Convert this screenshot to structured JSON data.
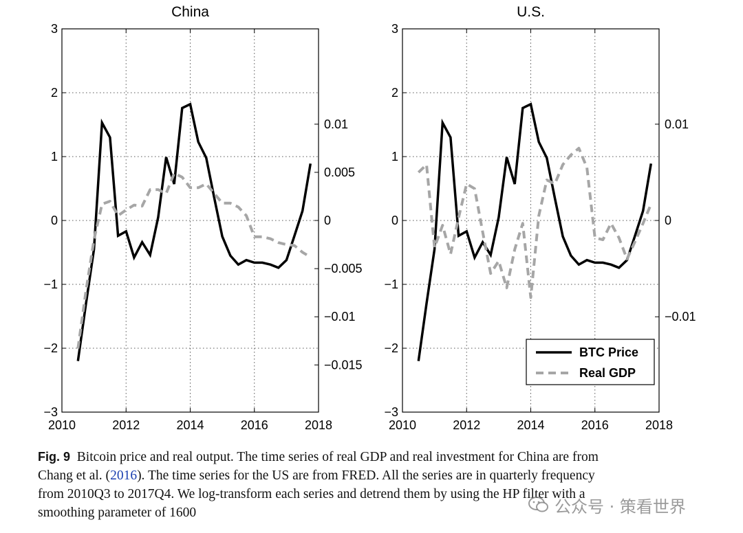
{
  "chart_data": [
    {
      "type": "line",
      "title": "China",
      "xlabel": "",
      "ylabel": "",
      "y2label": "",
      "xlim": [
        2010,
        2018
      ],
      "ylim": [
        -3,
        3
      ],
      "y2lim": [
        -0.0199,
        0.0199
      ],
      "x_ticks": [
        "2010",
        "2012",
        "2014",
        "2016",
        "2018"
      ],
      "y_ticks": [
        "3",
        "2",
        "1",
        "0",
        "−1",
        "−2",
        "−3"
      ],
      "y2_ticks": [
        "0.01",
        "0.005",
        "0",
        "−0.005",
        "−0.01",
        "−0.015"
      ],
      "grid": true,
      "x": [
        2010.5,
        2010.75,
        2011.0,
        2011.25,
        2011.5,
        2011.75,
        2012.0,
        2012.25,
        2012.5,
        2012.75,
        2013.0,
        2013.25,
        2013.5,
        2013.75,
        2014.0,
        2014.25,
        2014.5,
        2014.75,
        2015.0,
        2015.25,
        2015.5,
        2015.75,
        2016.0,
        2016.25,
        2016.5,
        2016.75,
        2017.0,
        2017.25,
        2017.5,
        2017.75
      ],
      "series": [
        {
          "name": "BTC Price",
          "axis": "left",
          "style": "solid",
          "values": [
            -2.2,
            -1.3,
            -0.45,
            1.53,
            1.3,
            -0.24,
            -0.17,
            -0.58,
            -0.34,
            -0.54,
            0.05,
            0.99,
            0.57,
            1.76,
            1.82,
            1.23,
            0.98,
            0.35,
            -0.25,
            -0.55,
            -0.69,
            -0.62,
            -0.66,
            -0.66,
            -0.69,
            -0.74,
            -0.62,
            -0.24,
            0.15,
            0.89
          ]
        },
        {
          "name": "Real GDP",
          "axis": "right",
          "style": "dashed",
          "values": [
            -0.0133,
            -0.0073,
            -0.002,
            0.0017,
            0.002,
            0.0005,
            0.0011,
            0.0016,
            0.0015,
            0.0032,
            0.0032,
            0.0028,
            0.0049,
            0.0045,
            0.0034,
            0.0034,
            0.0038,
            0.0028,
            0.0018,
            0.0018,
            0.0014,
            0.0005,
            -0.0017,
            -0.0017,
            -0.0019,
            -0.0023,
            -0.0025,
            -0.0026,
            -0.0033,
            -0.0038
          ]
        }
      ]
    },
    {
      "type": "line",
      "title": "U.S.",
      "xlabel": "",
      "ylabel": "",
      "y2label": "",
      "xlim": [
        2010,
        2018
      ],
      "ylim": [
        -3,
        3
      ],
      "y2lim": [
        -0.0199,
        0.0199
      ],
      "x_ticks": [
        "2010",
        "2012",
        "2014",
        "2016",
        "2018"
      ],
      "y_ticks": [
        "3",
        "2",
        "1",
        "0",
        "−1",
        "−2",
        "−3"
      ],
      "y2_ticks": [
        "0.01",
        "0",
        "−0.01"
      ],
      "grid": true,
      "legend": {
        "placement": "lower-right",
        "entries": [
          "BTC Price",
          "Real GDP"
        ]
      },
      "x": [
        2010.5,
        2010.75,
        2011.0,
        2011.25,
        2011.5,
        2011.75,
        2012.0,
        2012.25,
        2012.5,
        2012.75,
        2013.0,
        2013.25,
        2013.5,
        2013.75,
        2014.0,
        2014.25,
        2014.5,
        2014.75,
        2015.0,
        2015.25,
        2015.5,
        2015.75,
        2016.0,
        2016.25,
        2016.5,
        2016.75,
        2017.0,
        2017.25,
        2017.5,
        2017.75
      ],
      "series": [
        {
          "name": "BTC Price",
          "axis": "left",
          "style": "solid",
          "values": [
            -2.2,
            -1.3,
            -0.45,
            1.53,
            1.3,
            -0.24,
            -0.17,
            -0.58,
            -0.34,
            -0.54,
            0.05,
            0.99,
            0.57,
            1.76,
            1.82,
            1.23,
            0.98,
            0.35,
            -0.25,
            -0.55,
            -0.69,
            -0.62,
            -0.66,
            -0.66,
            -0.69,
            -0.74,
            -0.62,
            -0.24,
            0.15,
            0.89
          ]
        },
        {
          "name": "Real GDP",
          "axis": "right",
          "style": "dashed",
          "values": [
            0.005,
            0.0058,
            -0.0028,
            -0.0005,
            -0.0035,
            0.0003,
            0.0038,
            0.0033,
            -0.0012,
            -0.0055,
            -0.0042,
            -0.007,
            -0.003,
            -0.0003,
            -0.008,
            0.0005,
            0.0042,
            0.0038,
            0.0058,
            0.0068,
            0.0075,
            0.0055,
            -0.0018,
            -0.002,
            -0.0003,
            -0.0018,
            -0.004,
            -0.0022,
            -0.0003,
            0.0017
          ]
        }
      ]
    }
  ],
  "caption": {
    "label": "Fig. 9",
    "line1": "Bitcoin price and real output. The time series of real GDP and real investment for China are from",
    "line2_pre": "Chang et al. (",
    "line2_link": "2016",
    "line2_post": "). The time series for the US are from FRED. All the series are in quarterly frequency",
    "line3": "from 2010Q3 to 2017Q4. We log-transform each series and detrend them by using the HP filter with a",
    "line4": "smoothing parameter of 1600"
  },
  "watermark": {
    "text": "公众号 · 策看世界"
  }
}
